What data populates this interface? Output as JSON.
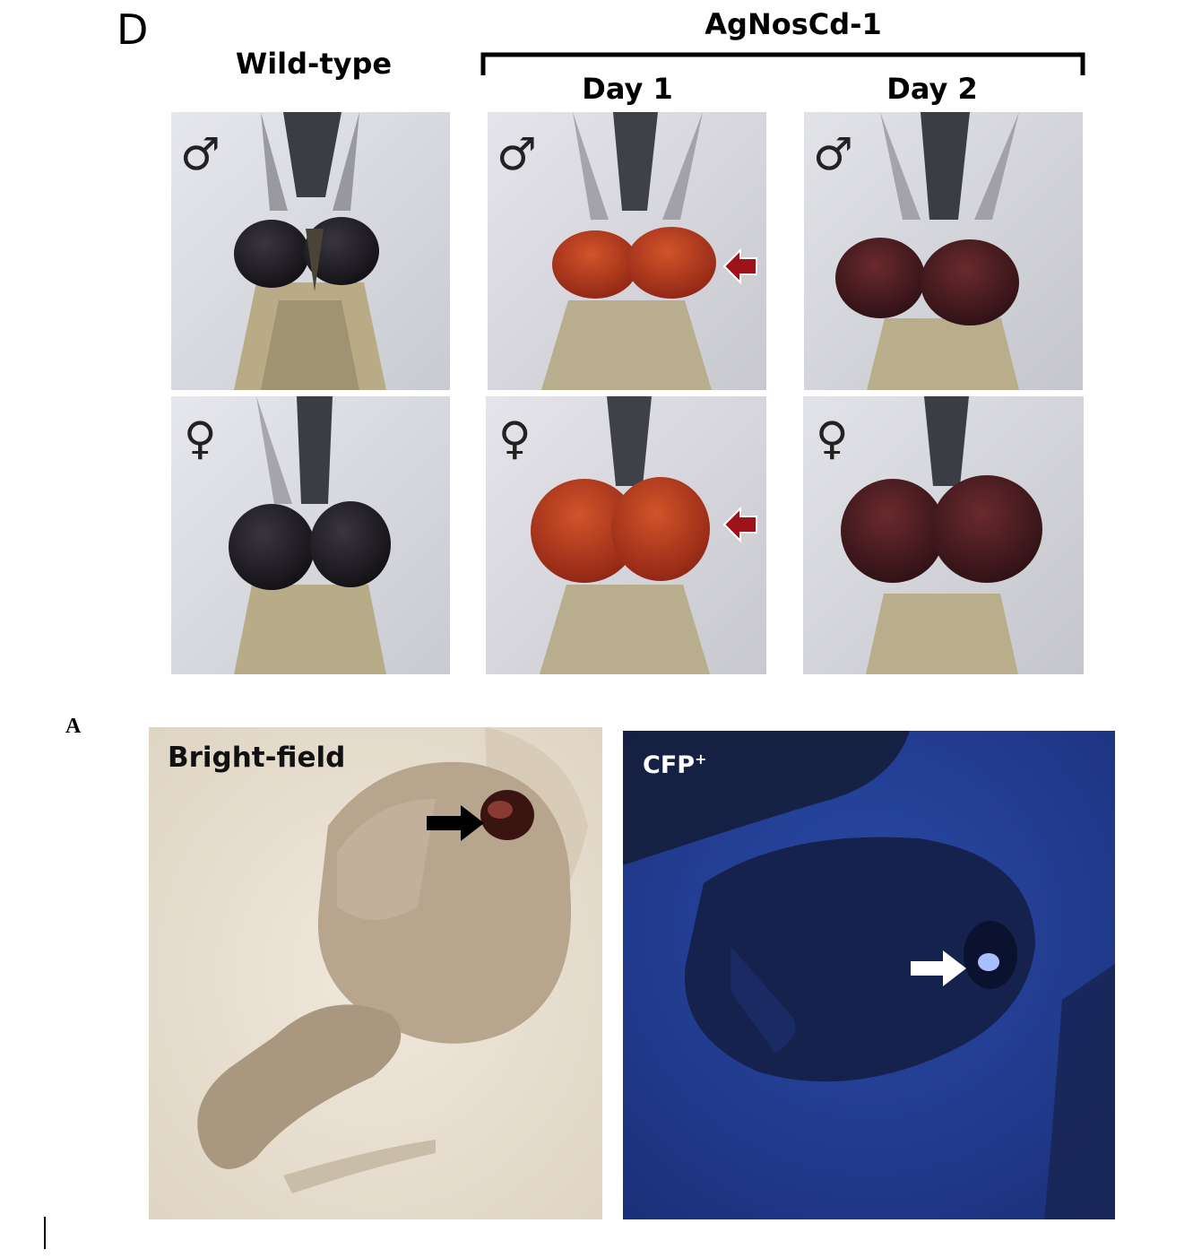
{
  "panel_d": {
    "letter": "D",
    "wild_type_label": "Wild-type",
    "strain_label": "AgNosCd-1",
    "day1_label": "Day 1",
    "day2_label": "Day 2",
    "male_symbol": "♂",
    "female_symbol": "♀",
    "colors": {
      "wild_eye": "#1c1a22",
      "day1_eye": "#a8301c",
      "day2_eye": "#4a1a1e",
      "arrow": "#a0121a",
      "background": "#d9dbe0"
    },
    "photos": [
      {
        "column": "Wild-type",
        "sex": "male",
        "eye": "dark"
      },
      {
        "column": "Day 1",
        "sex": "male",
        "eye": "red",
        "arrow": true
      },
      {
        "column": "Day 2",
        "sex": "male",
        "eye": "dark-red"
      },
      {
        "column": "Wild-type",
        "sex": "female",
        "eye": "dark"
      },
      {
        "column": "Day 1",
        "sex": "female",
        "eye": "red",
        "arrow": true
      },
      {
        "column": "Day 2",
        "sex": "female",
        "eye": "dark-red"
      }
    ]
  },
  "panel_a": {
    "letter": "A",
    "bright_field_label": "Bright-field",
    "cfp_label": "CFP",
    "cfp_superscript": "+",
    "colors": {
      "bright_bg": "#e9e0d2",
      "cfp_bg": "#1f3a8a",
      "black_arrow": "#000000",
      "white_arrow": "#ffffff"
    }
  }
}
